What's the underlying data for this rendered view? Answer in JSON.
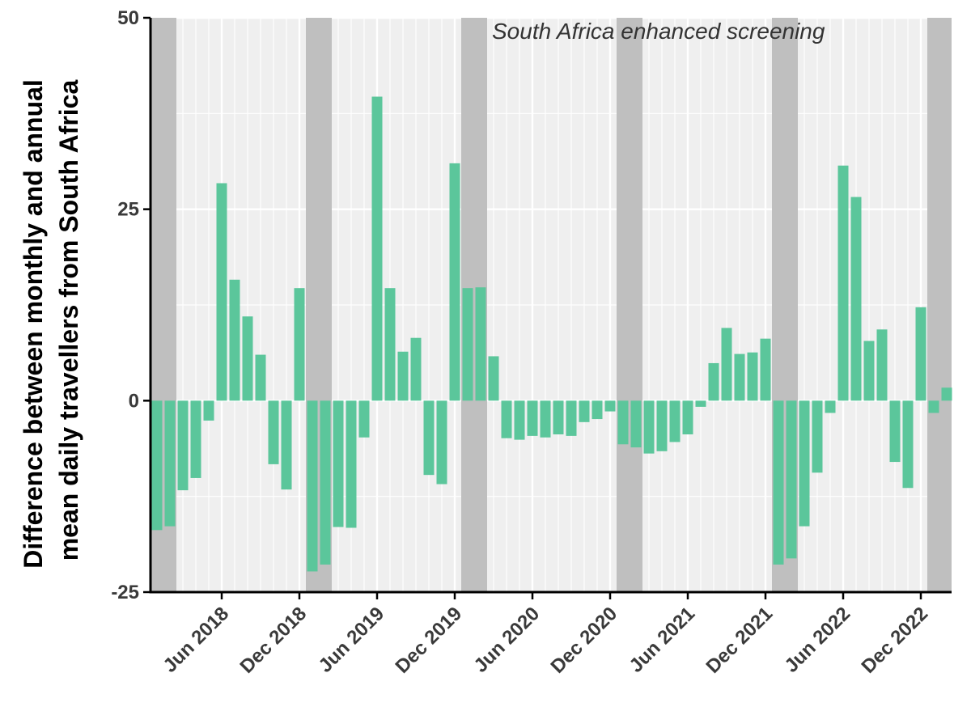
{
  "chart_data": {
    "type": "bar",
    "title": "",
    "xlabel": "",
    "ylabel": [
      "Difference between monthly and annual",
      "mean daily travellers from South Africa"
    ],
    "annotation": "South Africa enhanced screening",
    "ylim": [
      -25,
      50
    ],
    "yticks": [
      -25,
      0,
      25,
      50
    ],
    "x_start": "Jan 2018",
    "xticks": [
      "Jun 2018",
      "Dec 2018",
      "Jun 2019",
      "Dec 2019",
      "Jun 2020",
      "Dec 2020",
      "Jun 2021",
      "Dec 2021",
      "Jun 2022",
      "Dec 2022"
    ],
    "shaded_periods": [
      [
        "Jan 2018",
        "Feb 2018"
      ],
      [
        "Jan 2019",
        "Feb 2019"
      ],
      [
        "Jan 2020",
        "Feb 2020"
      ],
      [
        "Jan 2021",
        "Feb 2021"
      ],
      [
        "Jan 2022",
        "Feb 2022"
      ],
      [
        "Jan 2023",
        "Feb 2023"
      ]
    ],
    "series": [
      {
        "values": [
          -16.9,
          -16.4,
          -11.7,
          -10.1,
          -2.6,
          28.4,
          15.8,
          11.0,
          6.0,
          -8.3,
          -11.6,
          14.7,
          -22.3,
          -21.4,
          -16.5,
          -16.6,
          -4.8,
          39.7,
          14.7,
          6.4,
          8.2,
          -9.7,
          -10.9,
          31.0,
          14.7,
          14.8,
          5.8,
          -4.9,
          -5.1,
          -4.6,
          -4.8,
          -4.4,
          -4.6,
          -2.8,
          -2.4,
          -1.4,
          -5.7,
          -6.1,
          -6.9,
          -6.6,
          -5.4,
          -4.4,
          -0.8,
          4.9,
          9.5,
          6.1,
          6.3,
          8.1,
          -21.4,
          -20.6,
          -16.4,
          -9.4,
          -1.6,
          30.7,
          26.6,
          7.8,
          9.3,
          -8.0,
          -11.4,
          12.2,
          -1.6,
          1.7
        ]
      }
    ],
    "colors": {
      "bar": "#5bc69b",
      "panel": "#efefef",
      "grid": "#ffffff",
      "shade": "#bfbfbf",
      "axis": "#000000"
    }
  }
}
